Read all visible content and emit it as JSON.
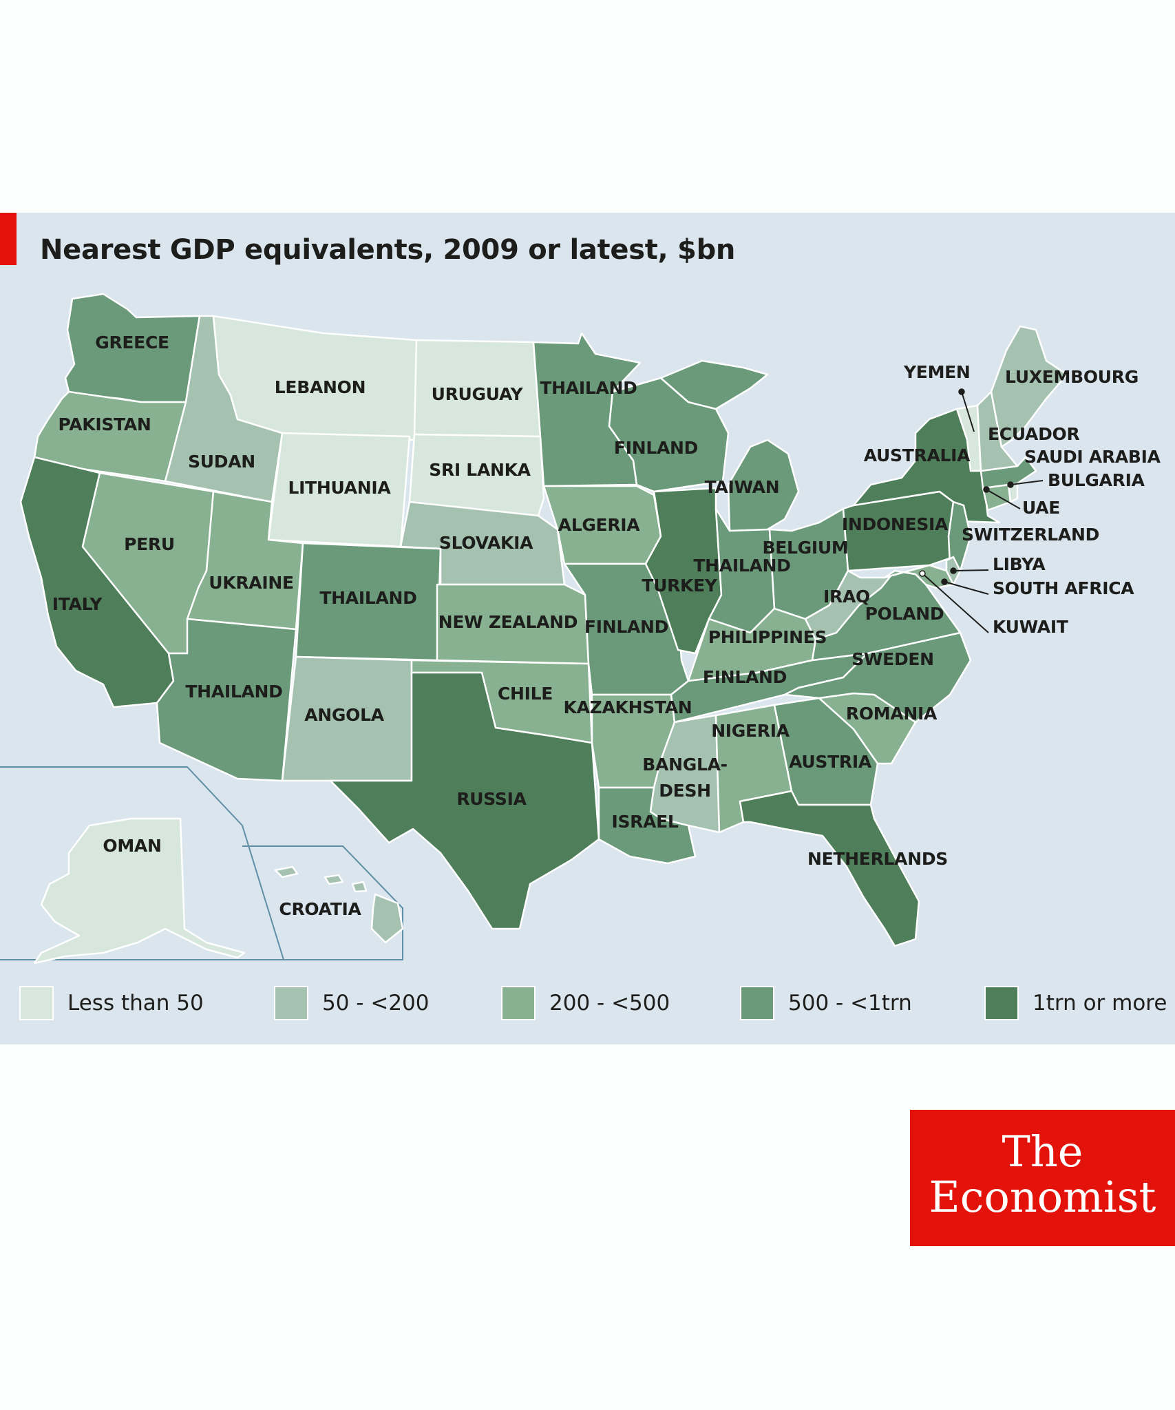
{
  "title": "Nearest GDP equivalents, 2009 or latest, $bn",
  "colors": {
    "accent": "#e3120b",
    "background": "#dae5ee",
    "c0": "#d8e7dd",
    "c1": "#a5c2b1",
    "c2": "#87b191",
    "c3": "#6a9a7a",
    "c4": "#4e7e5a"
  },
  "legend": [
    {
      "label": "Less than 50",
      "color": "#d8e7dd"
    },
    {
      "label": "50 - <200",
      "color": "#a5c2b1"
    },
    {
      "label": "200 - <500",
      "color": "#87b191"
    },
    {
      "label": "500 - <1trn",
      "color": "#6a9a7a"
    },
    {
      "label": "1trn or more",
      "color": "#4e7e5a"
    }
  ],
  "regions": {
    "WA": {
      "label": "GREECE",
      "category": "500 - <1trn"
    },
    "OR": {
      "label": "PAKISTAN",
      "category": "200 - <500"
    },
    "CA": {
      "label": "ITALY",
      "category": "1trn or more"
    },
    "ID": {
      "label": "SUDAN",
      "category": "50 - <200"
    },
    "NV": {
      "label": "PERU",
      "category": "200 - <500"
    },
    "MT": {
      "label": "LEBANON",
      "category": "Less than 50"
    },
    "WY": {
      "label": "LITHUANIA",
      "category": "Less than 50"
    },
    "UT": {
      "label": "UKRAINE",
      "category": "200 - <500"
    },
    "AZ": {
      "label": "THAILAND",
      "category": "500 - <1trn"
    },
    "CO": {
      "label": "THAILAND",
      "category": "500 - <1trn"
    },
    "NM": {
      "label": "ANGOLA",
      "category": "50 - <200"
    },
    "ND": {
      "label": "URUGUAY",
      "category": "Less than 50"
    },
    "SD": {
      "label": "SRI LANKA",
      "category": "Less than 50"
    },
    "NE": {
      "label": "SLOVAKIA",
      "category": "50 - <200"
    },
    "KS": {
      "label": "NEW ZEALAND",
      "category": "200 - <500"
    },
    "OK": {
      "label": "CHILE",
      "category": "200 - <500"
    },
    "TX": {
      "label": "RUSSIA",
      "category": "1trn or more"
    },
    "MN": {
      "label": "THAILAND",
      "category": "500 - <1trn"
    },
    "IA": {
      "label": "ALGERIA",
      "category": "200 - <500"
    },
    "MO": {
      "label": "FINLAND",
      "category": "500 - <1trn"
    },
    "AR": {
      "label": "KAZAKHSTAN",
      "category": "200 - <500"
    },
    "LA": {
      "label": "ISRAEL",
      "category": "500 - <1trn"
    },
    "WI": {
      "label": "FINLAND",
      "category": "500 - <1trn"
    },
    "IL": {
      "label": "TURKEY",
      "category": "1trn or more"
    },
    "MI": {
      "label": "TAIWAN",
      "category": "500 - <1trn"
    },
    "IN": {
      "label": "THAILAND",
      "category": "500 - <1trn"
    },
    "OH": {
      "label": "BELGIUM",
      "category": "500 - <1trn"
    },
    "KY": {
      "label": "PHILIPPINES",
      "category": "200 - <500"
    },
    "TN": {
      "label": "FINLAND",
      "category": "500 - <1trn"
    },
    "MS": {
      "label": "BANGLA-DESH",
      "category": "50 - <200"
    },
    "AL": {
      "label": "NIGERIA",
      "category": "200 - <500"
    },
    "GA": {
      "label": "AUSTRIA",
      "category": "500 - <1trn"
    },
    "FL": {
      "label": "NETHERLANDS",
      "category": "1trn or more"
    },
    "SC": {
      "label": "ROMANIA",
      "category": "200 - <500"
    },
    "NC": {
      "label": "SWEDEN",
      "category": "500 - <1trn"
    },
    "VA": {
      "label": "POLAND",
      "category": "500 - <1trn"
    },
    "WV": {
      "label": "IRAQ",
      "category": "50 - <200"
    },
    "PA": {
      "label": "INDONESIA",
      "category": "1trn or more"
    },
    "NY": {
      "label": "AUSTRALIA",
      "category": "1trn or more"
    },
    "NJ": {
      "label": "SWITZERLAND",
      "category": "500 - <1trn"
    },
    "DE": {
      "label": "LIBYA",
      "category": "50 - <200"
    },
    "MD": {
      "label": "SOUTH AFRICA",
      "category": "200 - <500"
    },
    "DC": {
      "label": "KUWAIT",
      "category": "50 - <200"
    },
    "CT": {
      "label": "UAE",
      "category": "200 - <500"
    },
    "RI": {
      "label": "BULGARIA",
      "category": "Less than 50"
    },
    "MA": {
      "label": "SAUDI ARABIA",
      "category": "500 - <1trn"
    },
    "VT": {
      "label": "YEMEN",
      "category": "Less than 50"
    },
    "NH": {
      "label": "ECUADOR",
      "category": "50 - <200"
    },
    "ME": {
      "label": "LUXEMBOURG",
      "category": "50 - <200"
    },
    "AK": {
      "label": "OMAN",
      "category": "Less than 50"
    },
    "HI": {
      "label": "CROATIA",
      "category": "50 - <200"
    }
  },
  "logo": {
    "line1": "The",
    "line2": "Economist"
  }
}
